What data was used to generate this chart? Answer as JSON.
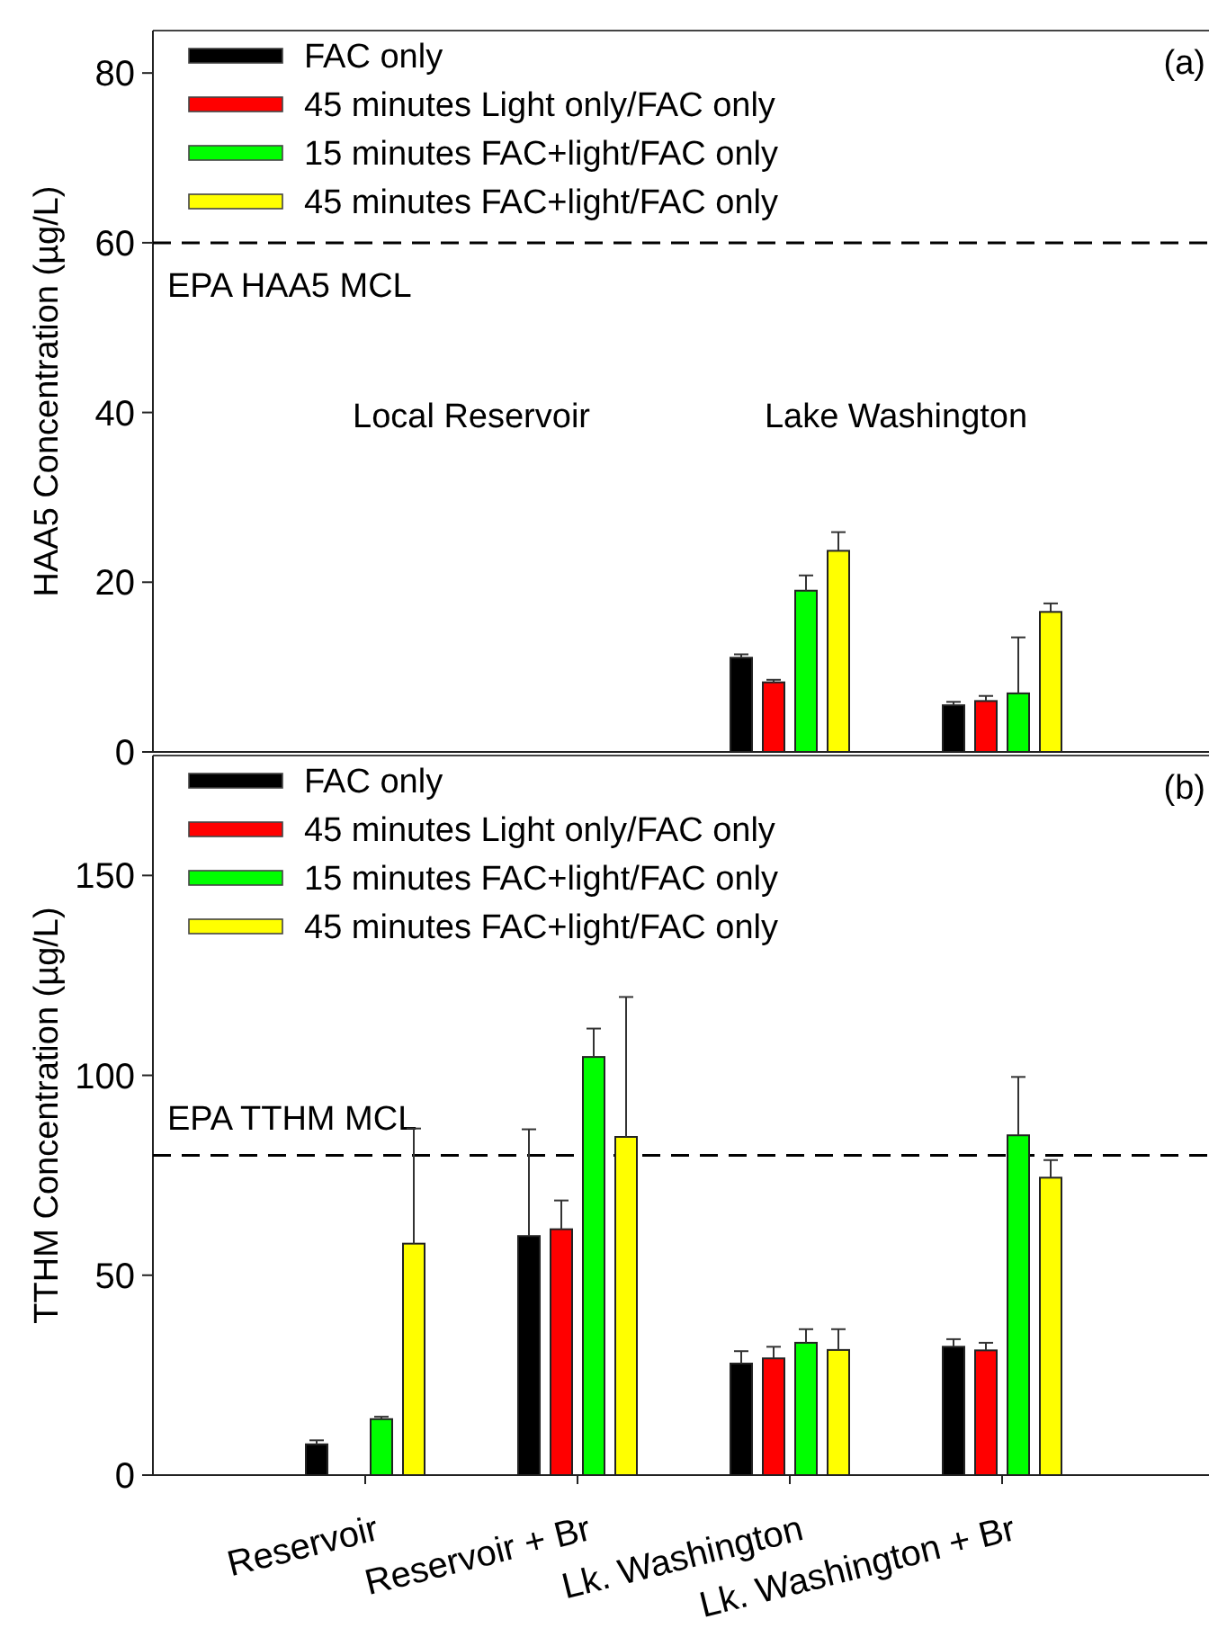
{
  "chart_data": [
    {
      "type": "bar",
      "title": "(a)",
      "ylabel": "HAA5 Concentration (µg/L)",
      "categories": [
        null,
        null,
        null,
        null
      ],
      "tick_labels": "y",
      "ylim": [
        0,
        85
      ],
      "yticks": [
        0,
        20,
        40,
        60,
        80
      ],
      "legend": "top left",
      "series": [
        {
          "name": "FAC only",
          "color": "#000000",
          "values": [
            null,
            null,
            11.1,
            5.5
          ],
          "errors": [
            null,
            null,
            0.4,
            0.4
          ]
        },
        {
          "name": "45 minutes Light only/FAC only",
          "color": "#ff0000",
          "values": [
            null,
            null,
            8.2,
            6.0
          ],
          "errors": [
            null,
            null,
            0.3,
            0.6
          ]
        },
        {
          "name": "15 minutes FAC+light/FAC only",
          "color": "#00ff00",
          "values": [
            null,
            null,
            19.0,
            6.9
          ],
          "errors": [
            null,
            null,
            1.8,
            6.6
          ]
        },
        {
          "name": "45 minutes FAC+light/FAC only",
          "color": "#ffff00",
          "values": [
            null,
            null,
            23.7,
            16.5
          ],
          "errors": [
            null,
            null,
            2.2,
            1.0
          ]
        }
      ],
      "ref_lines": [
        {
          "axis": "y",
          "value": 60,
          "label": "EPA HAA5 MCL",
          "line_style": "dashed"
        }
      ],
      "annotations": [
        "Local Reservoir",
        "Lake Washington"
      ]
    },
    {
      "type": "bar",
      "title": "(b)",
      "ylabel": "TTHM Concentration (µg/L)",
      "categories": [
        "Reservoir",
        "Reservoir +  Br",
        "Lk. Washington",
        "Lk. Washington + Br"
      ],
      "ylim": [
        0,
        180
      ],
      "yticks": [
        0,
        50,
        100,
        150
      ],
      "legend": "top left",
      "series": [
        {
          "name": "FAC only",
          "color": "#000000",
          "values": [
            7.7,
            59.8,
            27.9,
            32.1
          ],
          "errors": [
            1.0,
            26.7,
            3.1,
            1.9
          ]
        },
        {
          "name": "45 minutes Light only/FAC only",
          "color": "#ff0000",
          "values": [
            null,
            61.5,
            29.2,
            31.2
          ],
          "errors": [
            null,
            7.2,
            2.9,
            1.9
          ]
        },
        {
          "name": "15 minutes FAC+light/FAC only",
          "color": "#00ff00",
          "values": [
            14.0,
            104.6,
            33.1,
            85.0
          ],
          "errors": [
            0.6,
            7.1,
            3.4,
            14.6
          ]
        },
        {
          "name": "45 minutes FAC+light/FAC only",
          "color": "#ffff00",
          "values": [
            57.9,
            84.6,
            31.3,
            74.4
          ],
          "errors": [
            28.8,
            35.0,
            5.2,
            4.4
          ]
        }
      ],
      "ref_lines": [
        {
          "axis": "y",
          "value": 80,
          "label": "EPA TTHM MCL",
          "line_style": "dashed"
        }
      ]
    }
  ]
}
